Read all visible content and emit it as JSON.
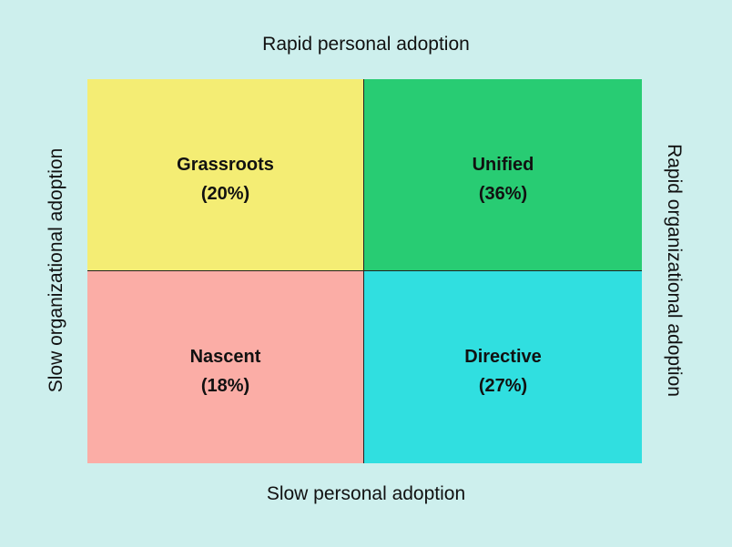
{
  "axes": {
    "top": "Rapid personal adoption",
    "bottom": "Slow personal adoption",
    "left": "Slow organizational adoption",
    "right": "Rapid organizational adoption"
  },
  "colors": {
    "background": "#cdefed",
    "grassroots": "#f4ed74",
    "unified": "#28cc73",
    "nascent": "#fbada6",
    "directive": "#30dfe0"
  },
  "quadrants": {
    "top_left": {
      "name": "Grassroots",
      "share": "(20%)"
    },
    "top_right": {
      "name": "Unified",
      "share": "(36%)"
    },
    "bottom_left": {
      "name": "Nascent",
      "share": "(18%)"
    },
    "bottom_right": {
      "name": "Directive",
      "share": "(27%)"
    }
  }
}
